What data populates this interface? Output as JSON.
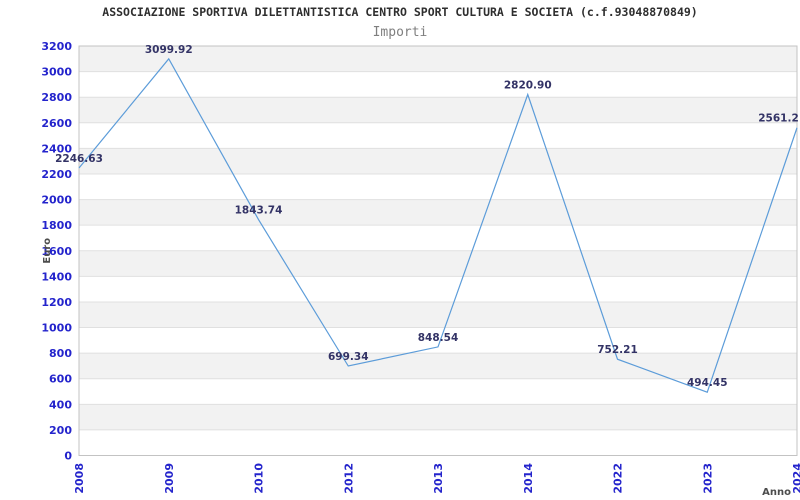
{
  "chart_data": {
    "type": "line",
    "title": "ASSOCIAZIONE SPORTIVA DILETTANTISTICA CENTRO SPORT CULTURA E SOCIETA (c.f.93048870849)",
    "subtitle": "Importi",
    "xlabel": "Anno",
    "ylabel": "Euro",
    "categories": [
      "2008",
      "2009",
      "2010",
      "2012",
      "2013",
      "2014",
      "2022",
      "2023",
      "2024"
    ],
    "series": [
      {
        "name": "Importi",
        "values": [
          2246.63,
          3099.92,
          1843.74,
          699.34,
          848.54,
          2820.9,
          752.21,
          494.45,
          2561.2
        ],
        "point_labels": [
          "2246.63",
          "3099.92",
          "1843.74",
          "699.34",
          "848.54",
          "2820.90",
          "752.21",
          "494.45",
          "2561.2"
        ]
      }
    ],
    "ylim": [
      0,
      3200
    ],
    "ytick_step": 200,
    "ytick_labels": [
      "0",
      "200",
      "400",
      "600",
      "800",
      "1000",
      "1200",
      "1400",
      "1600",
      "1800",
      "2000",
      "2200",
      "2400",
      "2600",
      "2800",
      "3000",
      "3200"
    ],
    "legend": "none",
    "grid": "horizontal gridlines with alternating shaded bands",
    "colors": {
      "line": "#5c9cd9",
      "tick_label": "#2424cc",
      "point_label": "#333366",
      "band": "#f2f2f2",
      "gridline": "#e0e0e0",
      "plot_border": "#c3c3c3",
      "title": "#2e2e2e",
      "subtitle": "#7f7f7f",
      "axis_title": "#4d4d4d",
      "background": "#ffffff"
    }
  }
}
